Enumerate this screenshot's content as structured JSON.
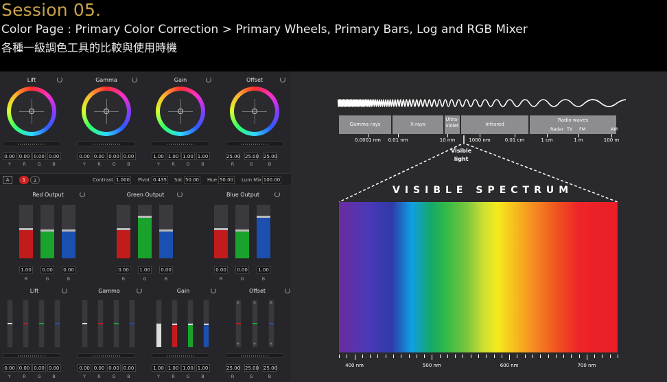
{
  "header": {
    "session": "Session 05.",
    "subtitle": "Color Page : Primary Color Correction > Primary Wheels, Primary Bars, Log and RGB Mixer",
    "subtitle_cn": "各種一級調色工具的比較與使用時機"
  },
  "wheels": [
    {
      "name": "Lift",
      "values": [
        "0.00",
        "0.00",
        "0.00",
        "0.00"
      ]
    },
    {
      "name": "Gamma",
      "values": [
        "0.00",
        "0.00",
        "0.00",
        "0.00"
      ]
    },
    {
      "name": "Gain",
      "values": [
        "1.00",
        "1.00",
        "1.00",
        "1.00"
      ]
    },
    {
      "name": "Offset",
      "values": [
        "25.00",
        "25.00",
        "25.00"
      ]
    }
  ],
  "channel_labels_ygrb": [
    "Y",
    "R",
    "G",
    "B"
  ],
  "channel_labels_rgb": [
    "R",
    "G",
    "B"
  ],
  "controls": {
    "a_button": "A",
    "page1": "1",
    "page2": "2",
    "contrast_label": "Contrast",
    "contrast": "1.000",
    "pivot_label": "Pivot",
    "pivot": "0.435",
    "sat_label": "Sat",
    "sat": "50.00",
    "hue_label": "Hue",
    "hue": "50.00",
    "lummix_label": "Lum Mix",
    "lummix": "100.00"
  },
  "rgb_mixer": [
    {
      "name": "Red Output",
      "values": [
        "1.00",
        "0.00",
        "0.00"
      ],
      "levels": [
        0.55,
        0.52,
        0.52
      ]
    },
    {
      "name": "Green Output",
      "values": [
        "0.00",
        "1.00",
        "0.00"
      ],
      "levels": [
        0.55,
        0.78,
        0.52
      ]
    },
    {
      "name": "Blue Output",
      "values": [
        "0.00",
        "0.00",
        "1.00"
      ],
      "levels": [
        0.55,
        0.52,
        0.78
      ]
    }
  ],
  "bars": [
    {
      "name": "Lift",
      "values": [
        "0.00",
        "0.00",
        "0.00",
        "0.00"
      ]
    },
    {
      "name": "Gamma",
      "values": [
        "0.00",
        "0.00",
        "0.00",
        "0.00"
      ]
    },
    {
      "name": "Gain",
      "values": [
        "1.00",
        "1.00",
        "1.00",
        "1.00"
      ]
    },
    {
      "name": "Offset",
      "values": [
        "25.00",
        "25.00",
        "25.00"
      ]
    }
  ],
  "spectrum": {
    "bands": [
      "Gamma rays",
      "X-rays",
      "Ultra-\nviolet",
      "Infrared",
      "Radio waves"
    ],
    "radio_sub": [
      "Radar",
      "TV",
      "FM",
      "AM"
    ],
    "scale": [
      "0.0001 nm",
      "0.01 nm",
      "10 nm",
      "1000 nm",
      "0.01 cm",
      "1 cm",
      "1 m",
      "100 m"
    ],
    "visible_light": "Visible\nlight",
    "title": "VISIBLE SPECTRUM",
    "nm_labels": [
      "400 nm",
      "500 nm",
      "600 nm",
      "700 nm"
    ]
  }
}
